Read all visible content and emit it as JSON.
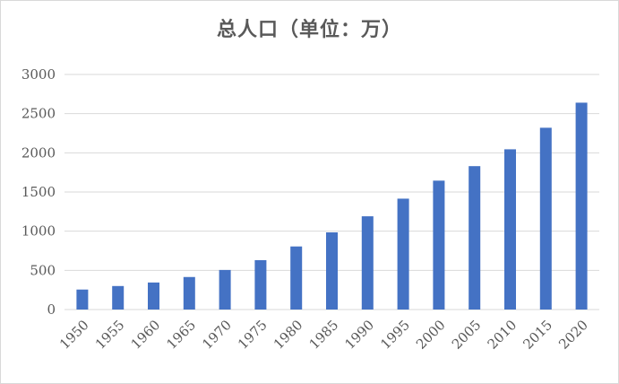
{
  "chart_data": {
    "type": "bar",
    "title": "总人口（单位：万）",
    "categories": [
      "1950",
      "1955",
      "1960",
      "1965",
      "1970",
      "1975",
      "1980",
      "1985",
      "1990",
      "1995",
      "2000",
      "2005",
      "2010",
      "2015",
      "2020"
    ],
    "values": [
      255,
      300,
      345,
      415,
      505,
      630,
      805,
      985,
      1190,
      1415,
      1645,
      1830,
      2045,
      2320,
      2640
    ],
    "ylim": [
      0,
      3000
    ],
    "yticks": [
      0,
      500,
      1000,
      1500,
      2000,
      2500,
      3000
    ],
    "xlabel": "",
    "ylabel": "",
    "grid": true,
    "legend": "none",
    "colors": {
      "bar": "#4472c4",
      "grid": "#d9d9d9",
      "text": "#595959"
    }
  }
}
